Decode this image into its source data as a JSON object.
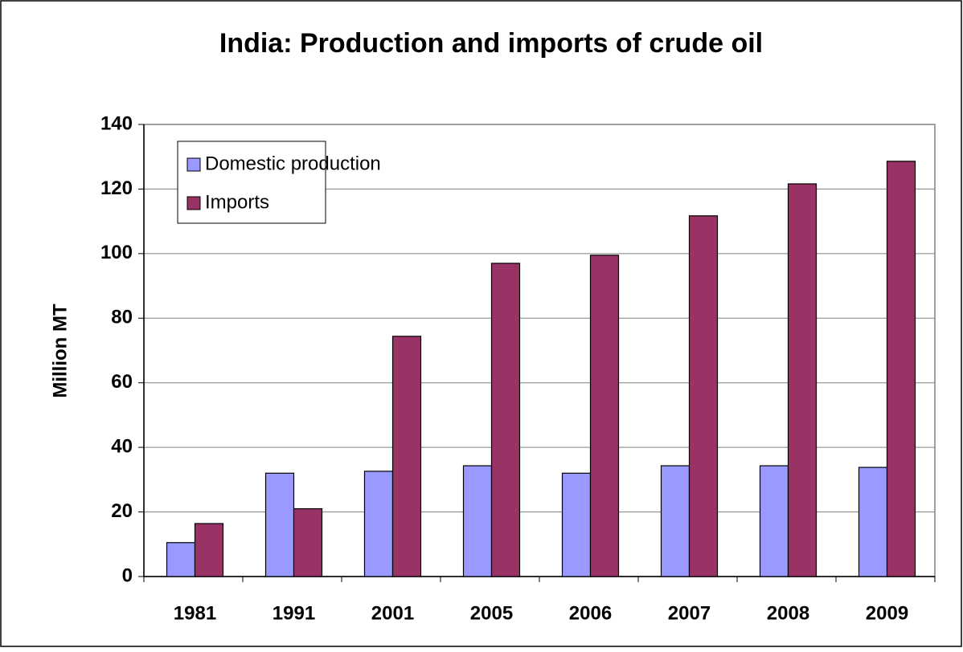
{
  "chart_data": {
    "type": "bar",
    "title": "India: Production and imports of crude oil",
    "y_label": "Million MT",
    "categories": [
      "1981",
      "1991",
      "2001",
      "2005",
      "2006",
      "2007",
      "2008",
      "2009"
    ],
    "series": [
      {
        "name": "Domestic production",
        "color": "#9999ff",
        "values": [
          10.5,
          32,
          32.6,
          34.3,
          32,
          34.3,
          34.3,
          33.8
        ]
      },
      {
        "name": "Imports",
        "color": "#993366",
        "values": [
          16.4,
          21,
          74.4,
          97,
          99.5,
          111.7,
          121.6,
          128.6
        ]
      }
    ],
    "ylim": [
      0,
      140
    ],
    "yticks": [
      0,
      20,
      40,
      60,
      80,
      100,
      120,
      140
    ],
    "grid": true,
    "legend": "top-left"
  }
}
